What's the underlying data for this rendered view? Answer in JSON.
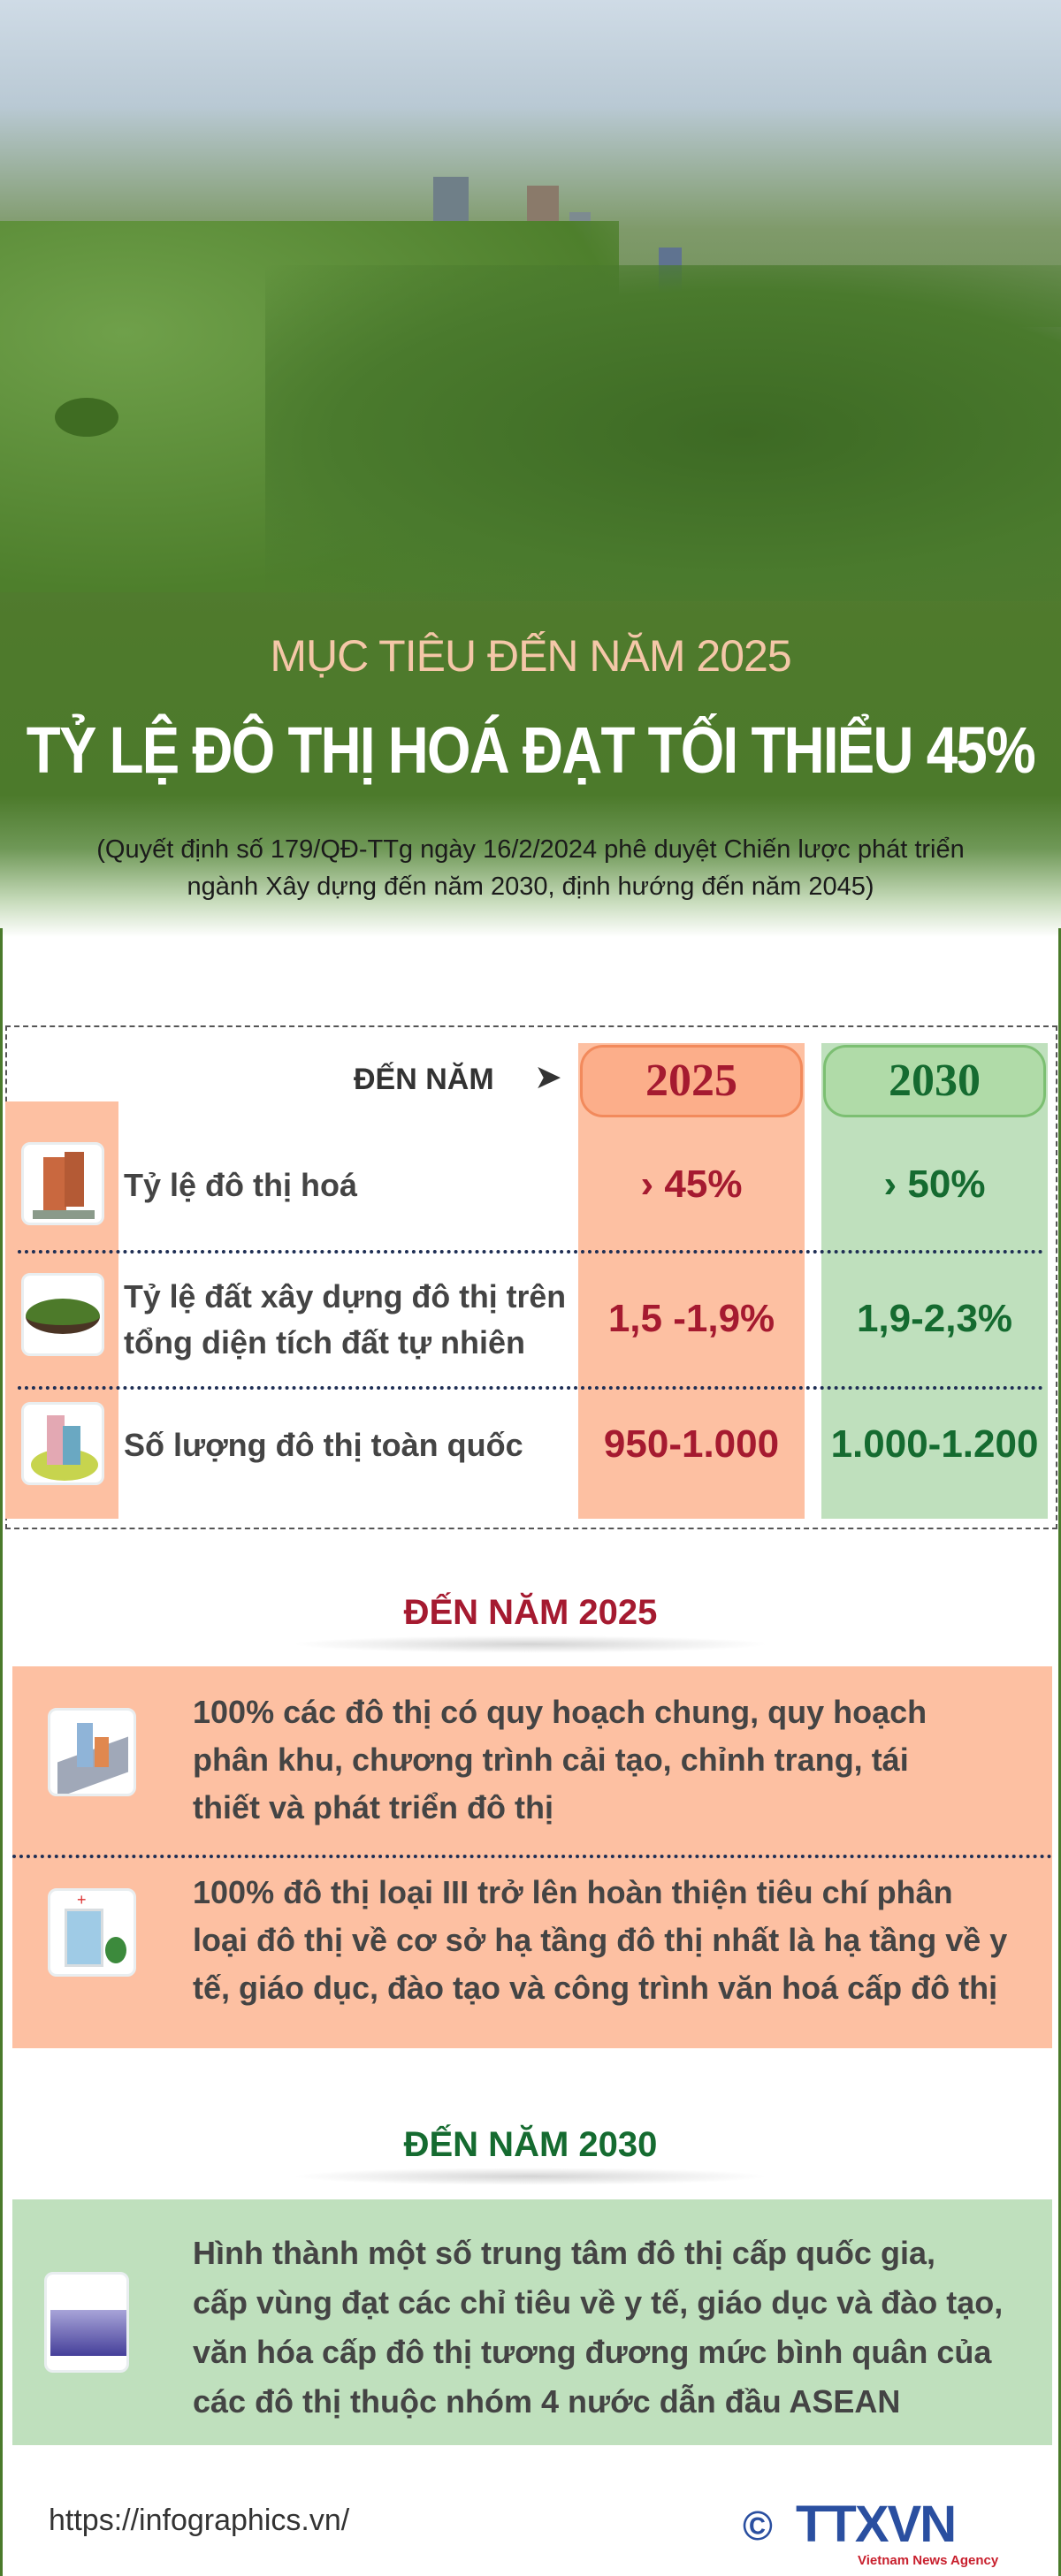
{
  "header": {
    "kicker": "MỤC TIÊU ĐẾN NĂM 2025",
    "title": "TỶ LỆ ĐÔ THỊ HOÁ ĐẠT TỐI THIỂU 45%",
    "source_lines": [
      "(Quyết định số 179/QĐ-TTg ngày 16/2/2024 phê duyệt Chiến lược phát triển",
      "ngành Xây dựng đến năm 2030, định hướng đến năm 2045)"
    ]
  },
  "table": {
    "header_label": "ĐẾN NĂM",
    "years": [
      "2025",
      "2030"
    ],
    "rows": [
      {
        "icon": "apartment-building-icon",
        "label_lines": [
          "Tỷ lệ đô thị hoá"
        ],
        "v2025": "› 45%",
        "v2030": "› 50%"
      },
      {
        "icon": "grass-land-icon",
        "label_lines": [
          "Tỷ lệ đất xây dựng đô thị trên",
          "tổng diện tích đất tự nhiên"
        ],
        "v2025": "1,5 -1,9%",
        "v2030": "1,9-2,3%"
      },
      {
        "icon": "city-buildings-icon",
        "label_lines": [
          "Số lượng đô thị toàn quốc"
        ],
        "v2025": "950-1.000",
        "v2030": "1.000-1.200"
      }
    ]
  },
  "section2025": {
    "title": "ĐẾN NĂM 2025",
    "items": [
      {
        "icon": "city-tablet-icon",
        "lines": [
          "100% các đô thị có quy hoạch chung, quy hoạch",
          "phân khu, chương trình cải tạo, chỉnh trang, tái",
          "thiết và phát triển đô thị"
        ]
      },
      {
        "icon": "hospital-icon",
        "lines": [
          "100% đô thị loại III trở lên hoàn thiện tiêu chí phân",
          "loại đô thị về cơ sở hạ tầng đô thị nhất là hạ tầng về y",
          "tế, giáo dục, đào tạo và công trình văn hoá cấp đô thị"
        ]
      }
    ]
  },
  "section2030": {
    "title": "ĐẾN NĂM 2030",
    "items": [
      {
        "icon": "skyline-icon",
        "lines": [
          "Hình thành một số trung tâm đô thị cấp quốc gia,",
          "cấp vùng đạt các chỉ tiêu về y tế, giáo dục và đào tạo,",
          "văn hóa cấp đô thị tương đương mức bình quân của",
          "các đô thị thuộc nhóm 4 nước dẫn đầu ASEAN"
        ]
      }
    ]
  },
  "footer": {
    "url": "https://infographics.vn/",
    "logo_text": "TTXVN",
    "logo_sub": "Vietnam News Agency",
    "copyright": "©"
  },
  "colors": {
    "peach": "#fdc0a2",
    "mint": "#bfe0bd",
    "red": "#a51a30",
    "green": "#156b30",
    "hero_green": "#4c7a2b",
    "logo_blue": "#2a4fa0"
  }
}
